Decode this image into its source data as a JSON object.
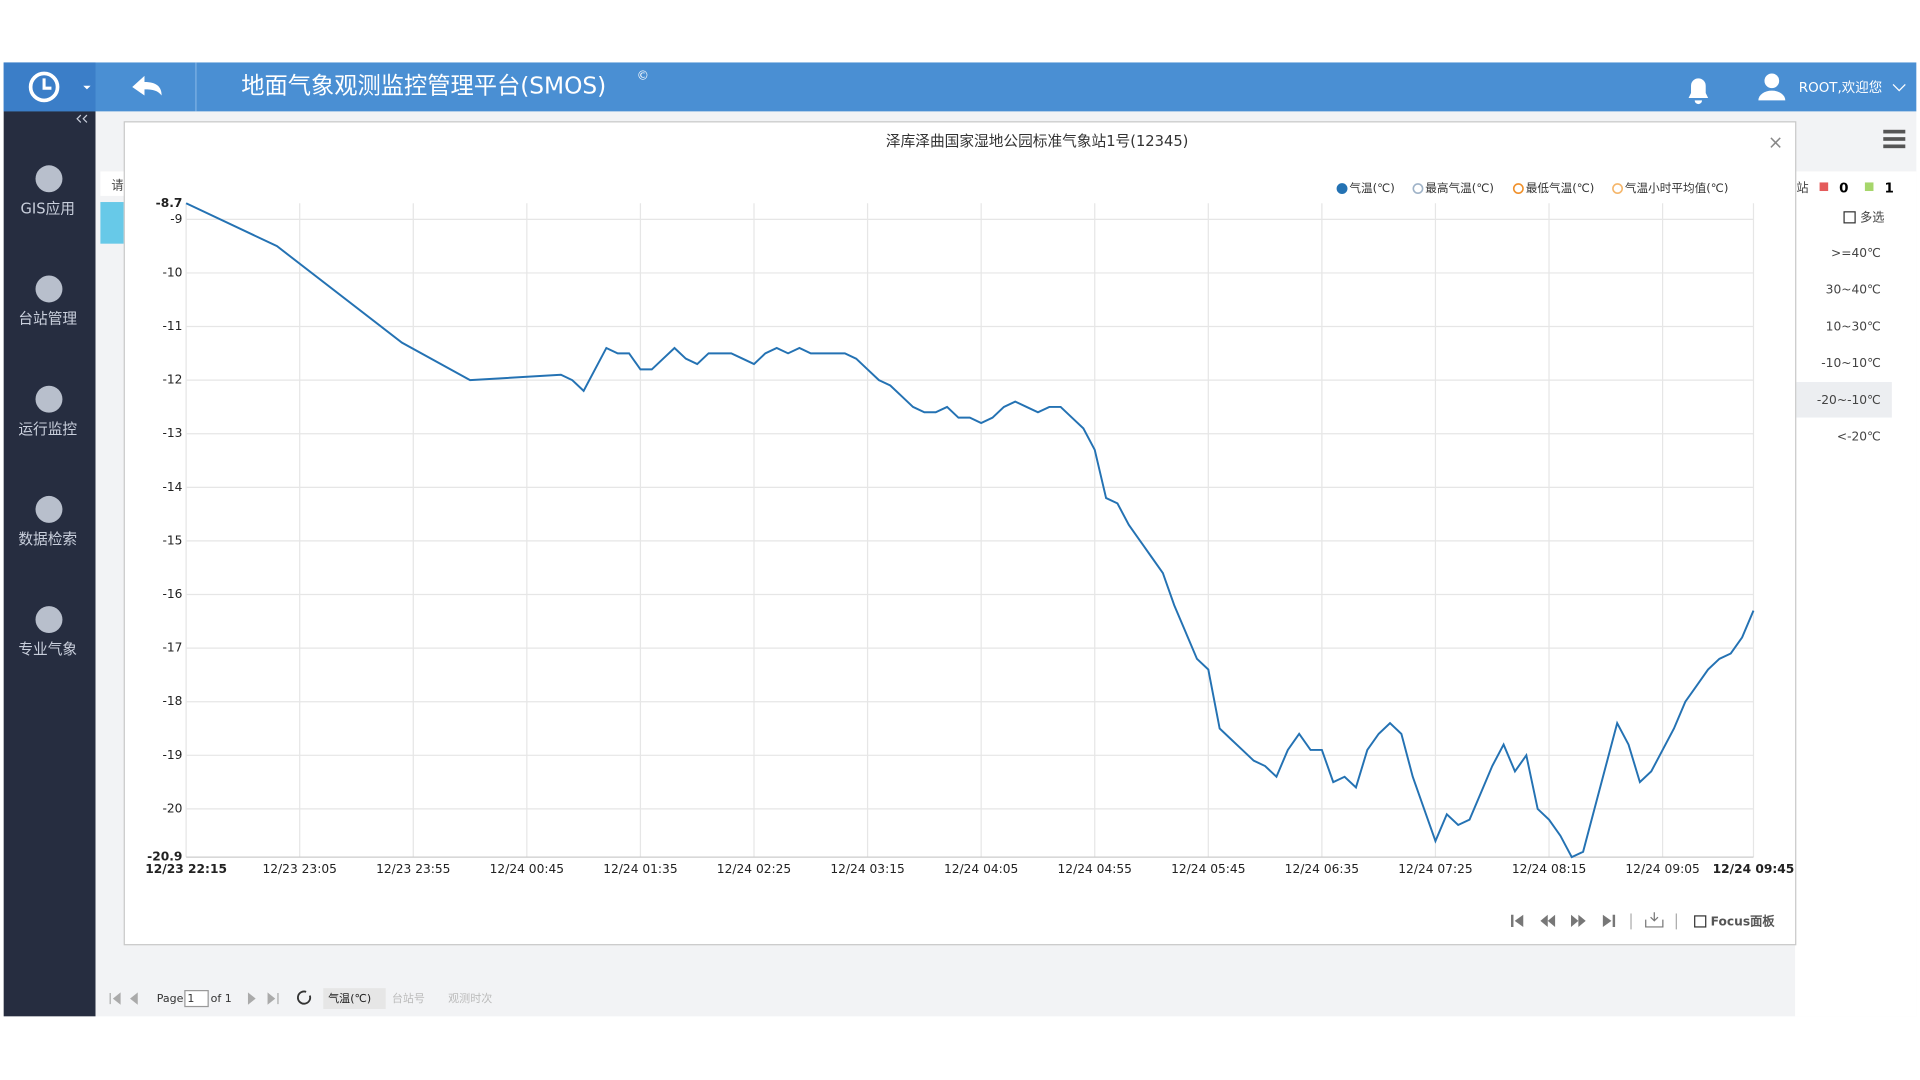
{
  "header": {
    "title": "地面气象观测监控管理平台(SMOS)",
    "mark": "©",
    "user": "ROOT,欢迎您"
  },
  "sidebar": [
    "GIS应用",
    "台站管理",
    "运行监控",
    "数据检索",
    "专业气象"
  ],
  "background": {
    "prompt": "请",
    "station": "站",
    "count_red": 0,
    "count_green": 1,
    "multi": "多选",
    "ranges": [
      ">=40℃",
      "30~40℃",
      "10~30℃",
      "-10~10℃",
      "-20~-10℃",
      "<-20℃"
    ]
  },
  "pager": {
    "page": "Page",
    "page_input": 1,
    "of": "of 1",
    "sorts": [
      "气温(℃)",
      "台站号",
      "观测时次"
    ]
  },
  "modal": {
    "close": "×",
    "focus": "Focus面板"
  },
  "chart_data": {
    "type": "line",
    "title": "泽库泽曲国家湿地公园标准气象站1号(12345)",
    "x": [
      "12/23 22:15",
      "12/23 22:55",
      "12/23 23:50",
      "12/24 00:20",
      "12/24 01:00",
      "12/24 01:05",
      "12/24 01:10",
      "12/24 01:20",
      "12/24 01:25",
      "12/24 01:30",
      "12/24 01:35",
      "12/24 01:40",
      "12/24 01:45",
      "12/24 01:50",
      "12/24 01:55",
      "12/24 02:00",
      "12/24 02:05",
      "12/24 02:10",
      "12/24 02:15",
      "12/24 02:20",
      "12/24 02:25",
      "12/24 02:30",
      "12/24 02:35",
      "12/24 02:40",
      "12/24 02:45",
      "12/24 02:50",
      "12/24 02:55",
      "12/24 03:00",
      "12/24 03:05",
      "12/24 03:10",
      "12/24 03:15",
      "12/24 03:20",
      "12/24 03:25",
      "12/24 03:30",
      "12/24 03:35",
      "12/24 03:40",
      "12/24 03:45",
      "12/24 03:50",
      "12/24 03:55",
      "12/24 04:00",
      "12/24 04:05",
      "12/24 04:10",
      "12/24 04:15",
      "12/24 04:20",
      "12/24 04:25",
      "12/24 04:30",
      "12/24 04:35",
      "12/24 04:40",
      "12/24 04:45",
      "12/24 04:50",
      "12/24 04:55",
      "12/24 05:00",
      "12/24 05:05",
      "12/24 05:10",
      "12/24 05:15",
      "12/24 05:20",
      "12/24 05:25",
      "12/24 05:30",
      "12/24 05:35",
      "12/24 05:40",
      "12/24 05:45",
      "12/24 05:50",
      "12/24 05:55",
      "12/24 06:00",
      "12/24 06:05",
      "12/24 06:10",
      "12/24 06:15",
      "12/24 06:20",
      "12/24 06:25",
      "12/24 06:30",
      "12/24 06:35",
      "12/24 06:40",
      "12/24 06:45",
      "12/24 06:50",
      "12/24 06:55",
      "12/24 07:00",
      "12/24 07:05",
      "12/24 07:10",
      "12/24 07:15",
      "12/24 07:20",
      "12/24 07:25",
      "12/24 07:30",
      "12/24 07:35",
      "12/24 07:40",
      "12/24 07:45",
      "12/24 07:50",
      "12/24 07:55",
      "12/24 08:00",
      "12/24 08:05",
      "12/24 08:10",
      "12/24 08:15",
      "12/24 08:20",
      "12/24 08:25",
      "12/24 08:30",
      "12/24 08:35",
      "12/24 08:40",
      "12/24 08:45",
      "12/24 08:50",
      "12/24 08:55",
      "12/24 09:00",
      "12/24 09:05",
      "12/24 09:10",
      "12/24 09:15",
      "12/24 09:20",
      "12/24 09:25",
      "12/24 09:30",
      "12/24 09:35",
      "12/24 09:40",
      "12/24 09:45"
    ],
    "series": [
      {
        "name": "气温(℃)",
        "color": "#2472b3",
        "values": [
          -8.7,
          -9.5,
          -11.3,
          -12.0,
          -11.9,
          -12.0,
          -12.2,
          -11.4,
          -11.5,
          -11.5,
          -11.8,
          -11.8,
          -11.6,
          -11.4,
          -11.6,
          -11.7,
          -11.5,
          -11.5,
          -11.5,
          -11.6,
          -11.7,
          -11.5,
          -11.4,
          -11.5,
          -11.4,
          -11.5,
          -11.5,
          -11.5,
          -11.5,
          -11.6,
          -11.8,
          -12.0,
          -12.1,
          -12.3,
          -12.5,
          -12.6,
          -12.6,
          -12.5,
          -12.7,
          -12.7,
          -12.8,
          -12.7,
          -12.5,
          -12.4,
          -12.5,
          -12.6,
          -12.5,
          -12.5,
          -12.7,
          -12.9,
          -13.3,
          -14.2,
          -14.3,
          -14.7,
          -15.0,
          -15.3,
          -15.6,
          -16.2,
          -16.7,
          -17.2,
          -17.4,
          -18.5,
          -18.7,
          -18.9,
          -19.1,
          -19.2,
          -19.4,
          -18.9,
          -18.6,
          -18.9,
          -18.9,
          -19.5,
          -19.4,
          -19.6,
          -18.9,
          -18.6,
          -18.4,
          -18.6,
          -19.4,
          -20.0,
          -20.6,
          -20.1,
          -20.3,
          -20.2,
          -19.7,
          -19.2,
          -18.8,
          -19.3,
          -19.0,
          -20.0,
          -20.2,
          -20.5,
          -20.9,
          -20.8,
          -20.0,
          -19.2,
          -18.4,
          -18.8,
          -19.5,
          -19.3,
          -18.9,
          -18.5,
          -18.0,
          -17.7,
          -17.4,
          -17.2,
          -17.1,
          -16.8,
          -16.3
        ]
      }
    ],
    "legend": [
      {
        "name": "气温(℃)",
        "color": "#2472b3",
        "hollow": false
      },
      {
        "name": "最高气温(℃)",
        "color": "#9fb3c8",
        "hollow": true
      },
      {
        "name": "最低气温(℃)",
        "color": "#f0902a",
        "hollow": true
      },
      {
        "name": "气温小时平均值(℃)",
        "color": "#f5b66a",
        "hollow": true
      }
    ],
    "xlim": [
      "12/23 22:15",
      "12/24 09:45"
    ],
    "xticks": [
      "12/23 22:15",
      "12/23 23:05",
      "12/23 23:55",
      "12/24 00:45",
      "12/24 01:35",
      "12/24 02:25",
      "12/24 03:15",
      "12/24 04:05",
      "12/24 04:55",
      "12/24 05:45",
      "12/24 06:35",
      "12/24 07:25",
      "12/24 08:15",
      "12/24 09:05",
      "12/24 09:45"
    ],
    "ylim": [
      -20.9,
      -8.7
    ],
    "yticks": [
      -8.7,
      -9,
      -10,
      -11,
      -12,
      -13,
      -14,
      -15,
      -16,
      -17,
      -18,
      -19,
      -20,
      -20.9
    ],
    "grid": true
  }
}
